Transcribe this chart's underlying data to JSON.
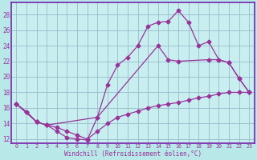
{
  "xlabel": "Windchill (Refroidissement éolien,°C)",
  "bg_color": "#b8e8e8",
  "plot_bg_color": "#c8eef0",
  "line_color": "#993399",
  "border_color": "#7722aa",
  "grid_color": "#99bbcc",
  "xlim": [
    -0.5,
    23.5
  ],
  "ylim": [
    11.5,
    29.5
  ],
  "yticks": [
    12,
    14,
    16,
    18,
    20,
    22,
    24,
    26,
    28
  ],
  "xticks": [
    0,
    1,
    2,
    3,
    4,
    5,
    6,
    7,
    8,
    9,
    10,
    11,
    12,
    13,
    14,
    15,
    16,
    17,
    18,
    19,
    20,
    21,
    22,
    23
  ],
  "line1_x": [
    0,
    1,
    2,
    3,
    4,
    5,
    6,
    7,
    8,
    9,
    10,
    11,
    12,
    13,
    14,
    15,
    16,
    17,
    18,
    19,
    20,
    21,
    22,
    23
  ],
  "line1_y": [
    16.5,
    15.5,
    14.2,
    13.8,
    13.0,
    12.2,
    12.0,
    11.9,
    14.8,
    19.0,
    21.5,
    22.5,
    24.0,
    26.5,
    27.0,
    27.1,
    28.5,
    27.0,
    24.0,
    24.5,
    22.2,
    21.8,
    19.8,
    18.0
  ],
  "line2_x": [
    0,
    2,
    3,
    8,
    14,
    15,
    16,
    19,
    20,
    21,
    22,
    23
  ],
  "line2_y": [
    16.5,
    14.2,
    13.8,
    14.8,
    24.0,
    22.2,
    22.0,
    22.2,
    22.2,
    21.8,
    19.8,
    18.0
  ],
  "line3_x": [
    0,
    1,
    2,
    3,
    4,
    5,
    6,
    7,
    8,
    9,
    10,
    11,
    12,
    13,
    14,
    15,
    16,
    17,
    18,
    19,
    20,
    21,
    22,
    23
  ],
  "line3_y": [
    16.5,
    15.5,
    14.2,
    13.8,
    13.5,
    13.0,
    12.5,
    12.0,
    13.0,
    14.0,
    14.8,
    15.2,
    15.6,
    16.0,
    16.3,
    16.5,
    16.7,
    17.0,
    17.3,
    17.5,
    17.8,
    18.0,
    18.0,
    18.0
  ]
}
